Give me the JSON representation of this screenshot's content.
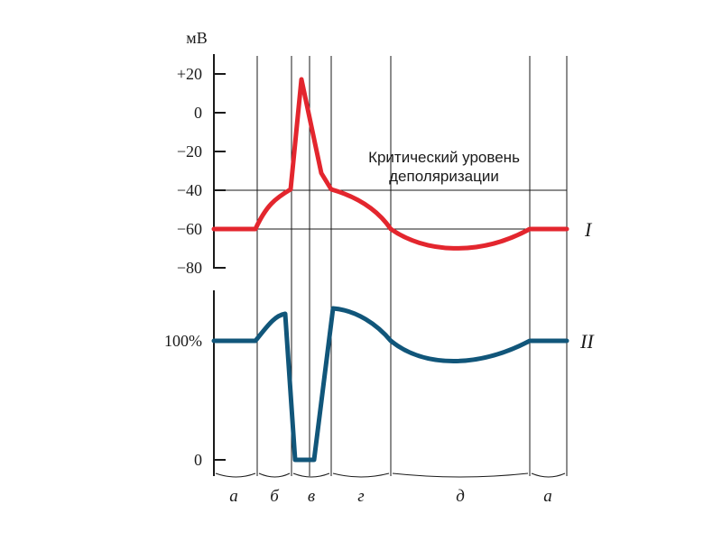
{
  "top_axis": {
    "unit": "мВ",
    "ticks": [
      "+20",
      "0",
      "−20",
      "−40",
      "−60",
      "−80"
    ]
  },
  "bottom_axis": {
    "ticks": [
      "100%",
      "0"
    ]
  },
  "annotation": {
    "line1": "Критический уровень",
    "line2": "деполяризации"
  },
  "curves": {
    "curve1": {
      "label": "I",
      "color": "#e3262e"
    },
    "curve2": {
      "label": "II",
      "color": "#11567a"
    }
  },
  "phases": [
    "а",
    "б",
    "в",
    "г",
    "д",
    "а"
  ]
}
